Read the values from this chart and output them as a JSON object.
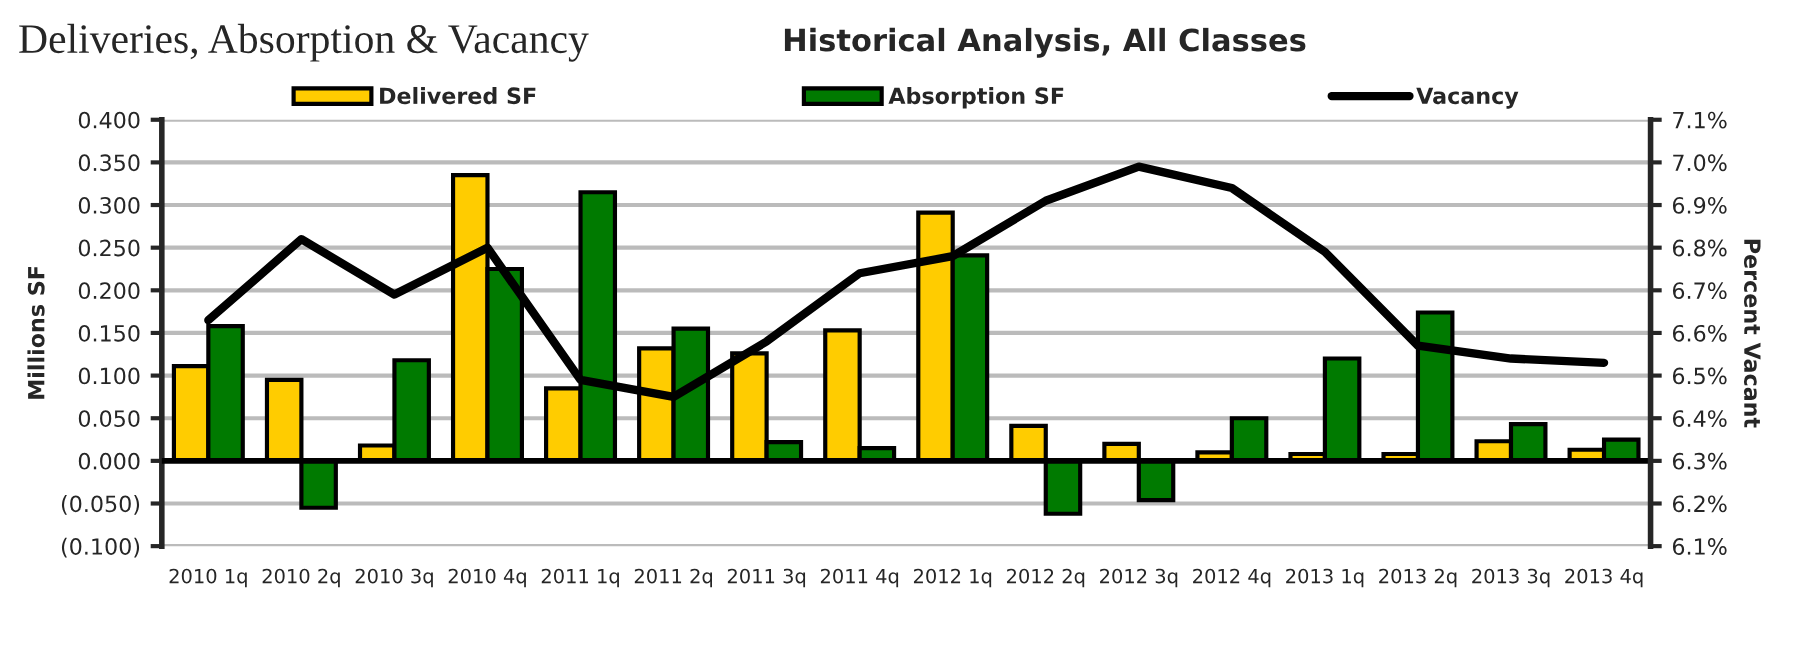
{
  "chart_data": {
    "type": "bar",
    "title": "Deliveries, Absorption & Vacancy",
    "subtitle": "Historical Analysis, All Classes",
    "ylabel": "Millions SF",
    "y2label": "Percent Vacant",
    "categories": [
      "2010 1q",
      "2010 2q",
      "2010 3q",
      "2010 4q",
      "2011 1q",
      "2011 2q",
      "2011 3q",
      "2011 4q",
      "2012 1q",
      "2012 2q",
      "2012 3q",
      "2012 4q",
      "2013 1q",
      "2013 2q",
      "2013 3q",
      "2013 4q"
    ],
    "series": [
      {
        "name": "Delivered SF",
        "color": "#ffcc00",
        "values": [
          0.111,
          0.095,
          0.018,
          0.335,
          0.085,
          0.132,
          0.126,
          0.153,
          0.291,
          0.041,
          0.02,
          0.01,
          0.008,
          0.008,
          0.023,
          0.013
        ]
      },
      {
        "name": "Absorption SF",
        "color": "#007a00",
        "values": [
          0.158,
          -0.055,
          0.118,
          0.225,
          0.315,
          0.155,
          0.022,
          0.015,
          0.241,
          -0.062,
          -0.046,
          0.05,
          0.12,
          0.174,
          0.043,
          0.025
        ]
      },
      {
        "name": "Vacancy",
        "type": "line",
        "axis": "y2",
        "color": "#000000",
        "values": [
          6.63,
          6.82,
          6.69,
          6.8,
          6.49,
          6.45,
          6.58,
          6.74,
          6.78,
          6.91,
          6.99,
          6.94,
          6.79,
          6.57,
          6.54,
          6.53
        ]
      }
    ],
    "ylim": [
      -0.1,
      0.4
    ],
    "yticks": [
      {
        "value": -0.1,
        "label": "(0.100)"
      },
      {
        "value": -0.05,
        "label": "(0.050)"
      },
      {
        "value": 0,
        "label": "0.000"
      },
      {
        "value": 0.05,
        "label": "0.050"
      },
      {
        "value": 0.1,
        "label": "0.100"
      },
      {
        "value": 0.15,
        "label": "0.150"
      },
      {
        "value": 0.2,
        "label": "0.200"
      },
      {
        "value": 0.25,
        "label": "0.250"
      },
      {
        "value": 0.3,
        "label": "0.300"
      },
      {
        "value": 0.35,
        "label": "0.350"
      },
      {
        "value": 0.4,
        "label": "0.400"
      }
    ],
    "y2lim": [
      6.1,
      7.1
    ],
    "y2ticks": [
      {
        "value": 6.1,
        "label": "6.1%"
      },
      {
        "value": 6.2,
        "label": "6.2%"
      },
      {
        "value": 6.3,
        "label": "6.3%"
      },
      {
        "value": 6.4,
        "label": "6.4%"
      },
      {
        "value": 6.5,
        "label": "6.5%"
      },
      {
        "value": 6.6,
        "label": "6.6%"
      },
      {
        "value": 6.7,
        "label": "6.7%"
      },
      {
        "value": 6.8,
        "label": "6.8%"
      },
      {
        "value": 6.9,
        "label": "6.9%"
      },
      {
        "value": 7.0,
        "label": "7.0%"
      },
      {
        "value": 7.1,
        "label": "7.1%"
      }
    ],
    "grid": "y",
    "legend": "top",
    "marker": "none",
    "line_style": "solid"
  }
}
